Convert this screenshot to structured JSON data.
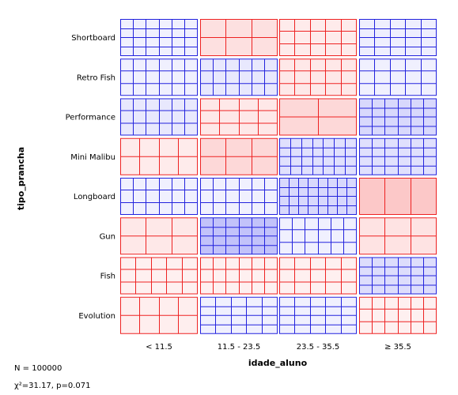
{
  "chart_data": {
    "type": "sieve",
    "xlabel": "idade_aluno",
    "ylabel": "tipo_prancha",
    "x_categories": [
      "< 11.5",
      "11.5 - 23.5",
      "23.5 - 35.5",
      "≥ 35.5"
    ],
    "y_categories": [
      "Shortboard",
      "Retro Fish",
      "Performance",
      "Mini Malibu",
      "Longboard",
      "Gun",
      "Fish",
      "Evolution"
    ],
    "cells": [
      {
        "y": "Shortboard",
        "x": "< 11.5",
        "deviation": "positive",
        "shade": 0.05,
        "cols": 6,
        "rows": 4
      },
      {
        "y": "Shortboard",
        "x": "11.5 - 23.5",
        "deviation": "negative",
        "shade": 0.35,
        "cols": 3,
        "rows": 2
      },
      {
        "y": "Shortboard",
        "x": "23.5 - 35.5",
        "deviation": "negative",
        "shade": 0.15,
        "cols": 5,
        "rows": 3
      },
      {
        "y": "Shortboard",
        "x": "≥ 35.5",
        "deviation": "positive",
        "shade": 0.1,
        "cols": 5,
        "rows": 4
      },
      {
        "y": "Retro Fish",
        "x": "< 11.5",
        "deviation": "positive",
        "shade": 0.05,
        "cols": 6,
        "rows": 3
      },
      {
        "y": "Retro Fish",
        "x": "11.5 - 23.5",
        "deviation": "positive",
        "shade": 0.2,
        "cols": 6,
        "rows": 3
      },
      {
        "y": "Retro Fish",
        "x": "23.5 - 35.5",
        "deviation": "negative",
        "shade": 0.2,
        "cols": 5,
        "rows": 3
      },
      {
        "y": "Retro Fish",
        "x": "≥ 35.5",
        "deviation": "positive",
        "shade": 0.05,
        "cols": 5,
        "rows": 3
      },
      {
        "y": "Performance",
        "x": "< 11.5",
        "deviation": "positive",
        "shade": 0.2,
        "cols": 6,
        "rows": 3
      },
      {
        "y": "Performance",
        "x": "11.5 - 23.5",
        "deviation": "negative",
        "shade": 0.2,
        "cols": 4,
        "rows": 3
      },
      {
        "y": "Performance",
        "x": "23.5 - 35.5",
        "deviation": "negative",
        "shade": 0.5,
        "cols": 2,
        "rows": 2
      },
      {
        "y": "Performance",
        "x": "≥ 35.5",
        "deviation": "positive",
        "shade": 0.5,
        "cols": 6,
        "rows": 4
      },
      {
        "y": "Mini Malibu",
        "x": "< 11.5",
        "deviation": "negative",
        "shade": 0.15,
        "cols": 4,
        "rows": 2
      },
      {
        "y": "Mini Malibu",
        "x": "11.5 - 23.5",
        "deviation": "negative",
        "shade": 0.5,
        "cols": 3,
        "rows": 2
      },
      {
        "y": "Mini Malibu",
        "x": "23.5 - 35.5",
        "deviation": "positive",
        "shade": 0.35,
        "cols": 7,
        "rows": 4
      },
      {
        "y": "Mini Malibu",
        "x": "≥ 35.5",
        "deviation": "positive",
        "shade": 0.35,
        "cols": 6,
        "rows": 4
      },
      {
        "y": "Longboard",
        "x": "< 11.5",
        "deviation": "positive",
        "shade": 0.05,
        "cols": 6,
        "rows": 3
      },
      {
        "y": "Longboard",
        "x": "11.5 - 23.5",
        "deviation": "positive",
        "shade": 0.05,
        "cols": 6,
        "rows": 3
      },
      {
        "y": "Longboard",
        "x": "23.5 - 35.5",
        "deviation": "positive",
        "shade": 0.5,
        "cols": 8,
        "rows": 4
      },
      {
        "y": "Longboard",
        "x": "≥ 35.5",
        "deviation": "negative",
        "shade": 0.8,
        "cols": 3,
        "rows": 1
      },
      {
        "y": "Gun",
        "x": "< 11.5",
        "deviation": "negative",
        "shade": 0.2,
        "cols": 3,
        "rows": 2
      },
      {
        "y": "Gun",
        "x": "11.5 - 23.5",
        "deviation": "positive",
        "shade": 0.9,
        "cols": 6,
        "rows": 4
      },
      {
        "y": "Gun",
        "x": "23.5 - 35.5",
        "deviation": "positive",
        "shade": 0.05,
        "cols": 6,
        "rows": 3
      },
      {
        "y": "Gun",
        "x": "≥ 35.5",
        "deviation": "negative",
        "shade": 0.3,
        "cols": 3,
        "rows": 2
      },
      {
        "y": "Fish",
        "x": "< 11.5",
        "deviation": "negative",
        "shade": 0.05,
        "cols": 5,
        "rows": 3
      },
      {
        "y": "Fish",
        "x": "11.5 - 23.5",
        "deviation": "negative",
        "shade": 0.05,
        "cols": 6,
        "rows": 3
      },
      {
        "y": "Fish",
        "x": "23.5 - 35.5",
        "deviation": "negative",
        "shade": 0.05,
        "cols": 5,
        "rows": 3
      },
      {
        "y": "Fish",
        "x": "≥ 35.5",
        "deviation": "positive",
        "shade": 0.4,
        "cols": 6,
        "rows": 4
      },
      {
        "y": "Evolution",
        "x": "< 11.5",
        "deviation": "negative",
        "shade": 0.1,
        "cols": 4,
        "rows": 2
      },
      {
        "y": "Evolution",
        "x": "11.5 - 23.5",
        "deviation": "positive",
        "shade": 0.05,
        "cols": 5,
        "rows": 4
      },
      {
        "y": "Evolution",
        "x": "23.5 - 35.5",
        "deviation": "positive",
        "shade": 0.05,
        "cols": 5,
        "rows": 4
      },
      {
        "y": "Evolution",
        "x": "≥ 35.5",
        "deviation": "negative",
        "shade": 0.05,
        "cols": 6,
        "rows": 3
      }
    ],
    "colors": {
      "positive_line": "#2222dd",
      "negative_line": "#ee2222",
      "positive_fill": "#3c3cf0",
      "negative_fill": "#f53c3c"
    }
  },
  "stats": {
    "n_label": "N = 100000",
    "chi_label": "χ²=31.17, p=0.071"
  }
}
